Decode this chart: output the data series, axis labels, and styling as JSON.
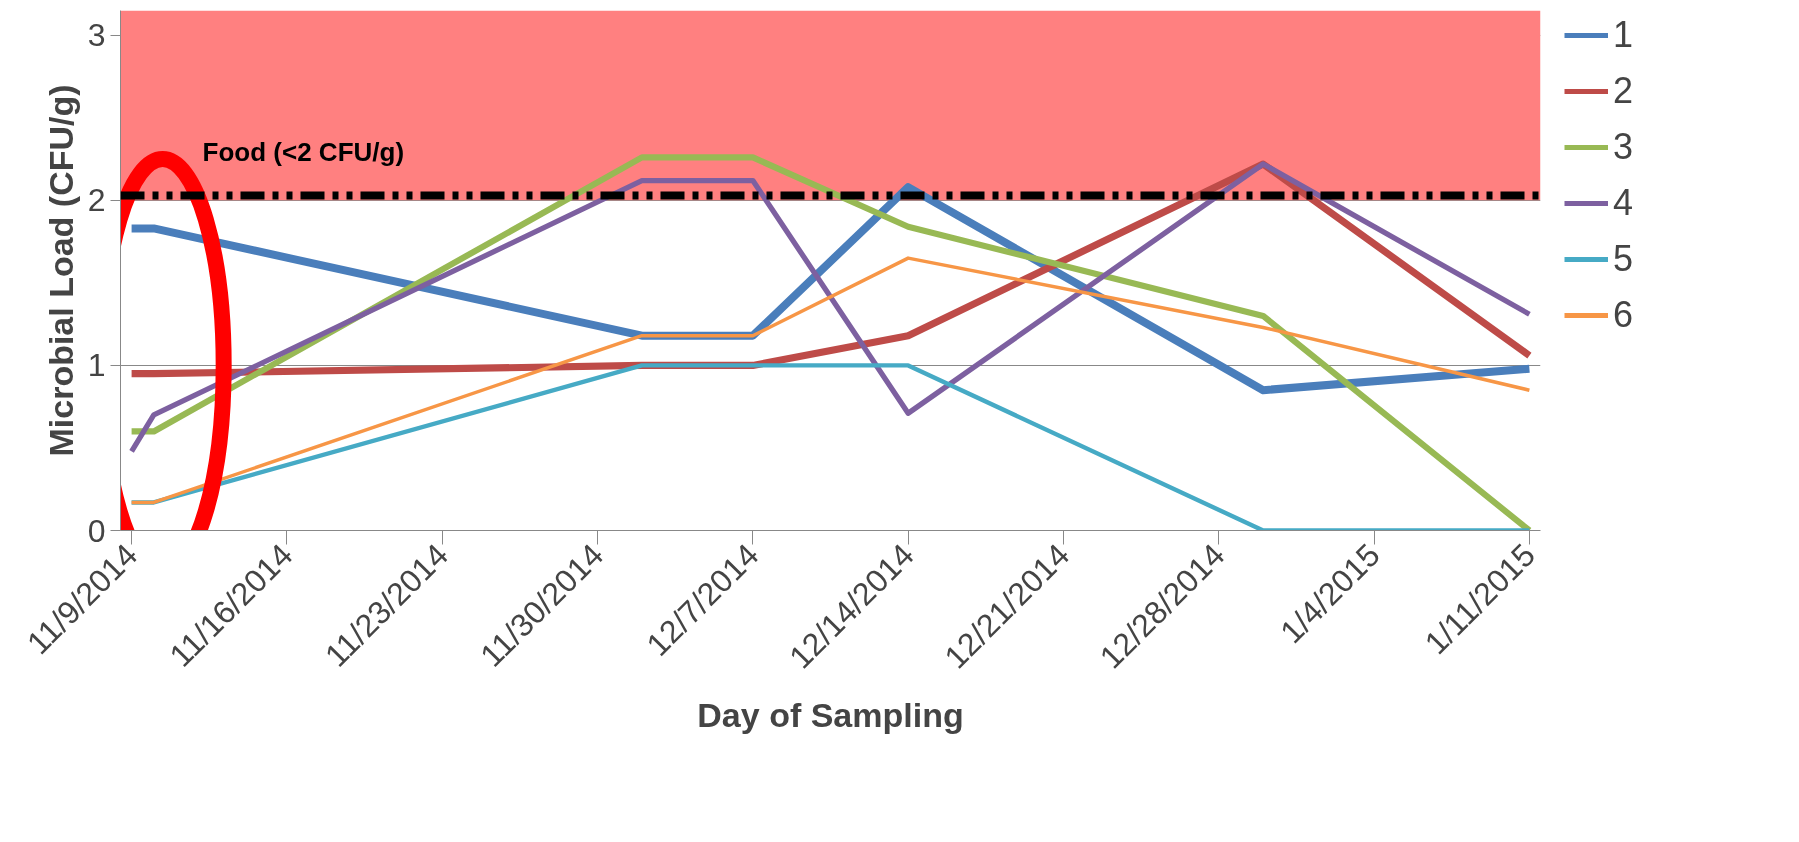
{
  "chart_data": {
    "type": "line",
    "xlabel": "Day of Sampling",
    "ylabel": "Microbial Load (CFU/g)",
    "x": [
      "2014-11-09",
      "2014-11-10",
      "2014-12-02",
      "2014-12-07",
      "2014-12-14",
      "2014-12-30",
      "2015-01-11"
    ],
    "series": [
      {
        "name": "1",
        "color": "#4a7ebb",
        "values": [
          1.83,
          1.83,
          1.18,
          1.18,
          2.08,
          0.85,
          0.98
        ]
      },
      {
        "name": "2",
        "color": "#be4b48",
        "values": [
          0.95,
          0.95,
          1.0,
          1.0,
          1.18,
          2.22,
          1.06
        ]
      },
      {
        "name": "3",
        "color": "#98b954",
        "values": [
          0.6,
          0.6,
          2.26,
          2.26,
          1.84,
          1.3,
          0.0
        ]
      },
      {
        "name": "4",
        "color": "#7d60a0",
        "values": [
          0.48,
          0.7,
          2.12,
          2.12,
          0.71,
          2.22,
          1.31
        ]
      },
      {
        "name": "5",
        "color": "#46aac5",
        "values": [
          0.17,
          0.17,
          1.0,
          1.0,
          1.0,
          0.0,
          0.0
        ]
      },
      {
        "name": "6",
        "color": "#f79646",
        "values": [
          0.17,
          0.17,
          1.18,
          1.18,
          1.65,
          1.23,
          0.85
        ]
      }
    ],
    "xlim": [
      "2014-11-08T12:00",
      "2015-01-11T12:00"
    ],
    "xticks": [
      {
        "value": "2014-11-09",
        "label": "11/9/2014"
      },
      {
        "value": "2014-11-16",
        "label": "11/16/2014"
      },
      {
        "value": "2014-11-23",
        "label": "11/23/2014"
      },
      {
        "value": "2014-11-30",
        "label": "11/30/2014"
      },
      {
        "value": "2014-12-07",
        "label": "12/7/2014"
      },
      {
        "value": "2014-12-14",
        "label": "12/14/2014"
      },
      {
        "value": "2014-12-21",
        "label": "12/21/2014"
      },
      {
        "value": "2014-12-28",
        "label": "12/28/2014"
      },
      {
        "value": "2015-01-04",
        "label": "1/4/2015"
      },
      {
        "value": "2015-01-11",
        "label": "1/11/2015"
      }
    ],
    "ylim": [
      0,
      3.15
    ],
    "yticks": [
      0,
      1,
      2,
      3
    ],
    "bands": [
      {
        "axis": "y",
        "from": 2,
        "to": 3.15,
        "color": "#ff8080"
      }
    ],
    "ref_lines": [
      {
        "axis": "y",
        "value": 2.03,
        "label": "Food (<2 CFU/g)",
        "color": "#000000",
        "line_style": "dashdot"
      }
    ],
    "grid": "y",
    "legend": "right",
    "marker": "none",
    "line_style": "solid"
  }
}
